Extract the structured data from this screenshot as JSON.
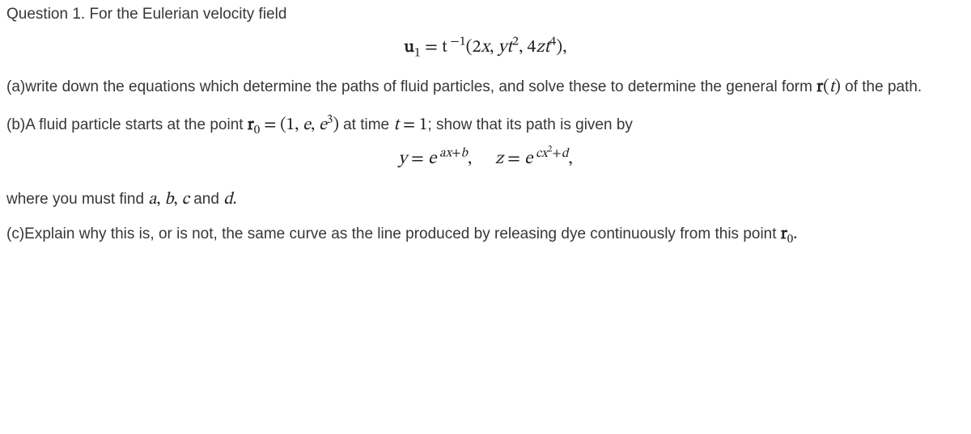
{
  "q1": {
    "line1": "Question 1. For the Eulerian velocity field",
    "eq1_html": "<span class=\"bold\">u</span><sub>1</sub> = <span class=\"math-inline\">t</span><sup>&nbsp;−1</sup>(2<i>x</i>, <i>y</i><i>t</i><sup>2</sup>, 4<i>z</i><i>t</i><sup>4</sup>),",
    "part_a_text": "(a)write down the equations which determine the paths of fluid particles, and solve these to determine the general form ",
    "part_a_r": "<span class=\"bold\">r</span>(<i>t</i>)",
    "part_a_tail": " of the path.",
    "part_b_lead": "(b)A fluid particle starts at the point ",
    "part_b_r0": "<span class=\"bold\">r</span><sub>0</sub> = (1, <i>e</i>, <i>e</i><sup>3</sup>)",
    "part_b_mid": " at time ",
    "part_b_t1": "<i>t</i> = 1",
    "part_b_tail": "; show that its path is given by",
    "eq2_html": "<i>y</i> = <i>e</i><sup>&nbsp;<i>a</i><i>x</i>+<i>b</i></sup>,<span class=\"gap\"></span><i>z</i> = <i>e</i><sup>&nbsp;<i>c</i><i>x</i><sup>2</sup>+<i>d</i></sup>,",
    "part_b_where": "where you must find ",
    "part_b_vars": "<i>a</i>, <i>b</i>, <i>c</i>",
    "part_b_and": " and ",
    "part_b_d": "<i>d</i>.",
    "part_c_text": "(c)Explain why this is, or is not, the same curve as the line produced by releasing dye continuously from this point ",
    "part_c_r0": "<span class=\"bold\">r</span><sub>0</sub>."
  }
}
